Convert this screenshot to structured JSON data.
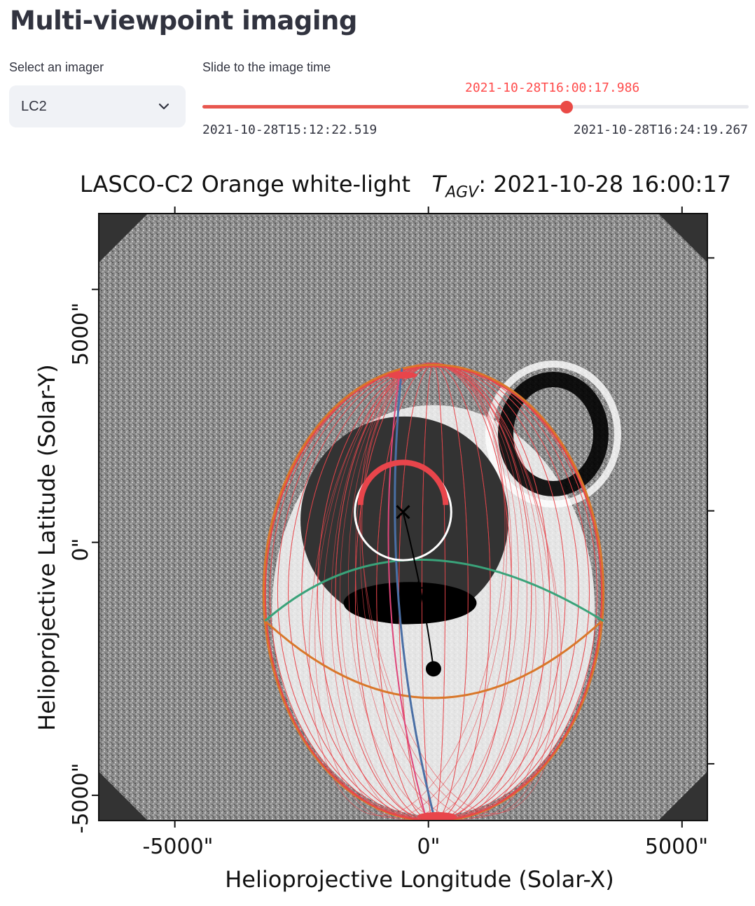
{
  "page": {
    "title": "Multi-viewpoint imaging"
  },
  "imager": {
    "label": "Select an imager",
    "selected": "LC2",
    "chevron_icon": "chevron-down-icon"
  },
  "time_slider": {
    "label": "Slide to the image time",
    "current": "2021-10-28T16:00:17.986",
    "min": "2021-10-28T15:12:22.519",
    "max": "2021-10-28T16:24:19.267",
    "position_fraction": 0.667,
    "accent_color": "#ff4b4b"
  },
  "figure": {
    "title_main": "LASCO-C2 Orange white-light",
    "title_symbol": "T",
    "title_subscript": "AGV",
    "title_time": ": 2021-10-28 16:00:17",
    "xlabel": "Helioprojective Longitude (Solar-X)",
    "ylabel": "Helioprojective Latitude (Solar-Y)",
    "xticks": [
      "-5000\"",
      "0\"",
      "5000\""
    ],
    "yticks": [
      "5000\"",
      "0\"",
      "-5000\""
    ],
    "colors": {
      "background": "#8a8a8a",
      "occulter": "#333333",
      "mesh": "#e8454b",
      "ellipse": "#d9772a",
      "meridian": "#4a6fa5",
      "equator": "#3aa37a",
      "sun_limb": "#ffffff"
    }
  },
  "chart_data": {
    "type": "scatter",
    "title": "LASCO-C2 Orange white-light T_AGV : 2021-10-28 16:00:17",
    "xlabel": "Helioprojective Longitude (Solar-X)",
    "ylabel": "Helioprojective Latitude (Solar-Y)",
    "xlim": [
      -6500,
      5500
    ],
    "ylim": [
      -5500,
      6500
    ],
    "xticks": [
      -5000,
      0,
      5000
    ],
    "yticks": [
      5000,
      0,
      -5000
    ],
    "sun_center": [
      -500,
      600
    ],
    "sun_radius": 950,
    "occulter_radius": 2050,
    "croissant_center": [
      100,
      -1000
    ],
    "croissant_semi_axes": [
      3350,
      4500
    ],
    "apex_point": [
      100,
      -2500
    ],
    "shock_marker": [
      -200,
      -900
    ]
  }
}
